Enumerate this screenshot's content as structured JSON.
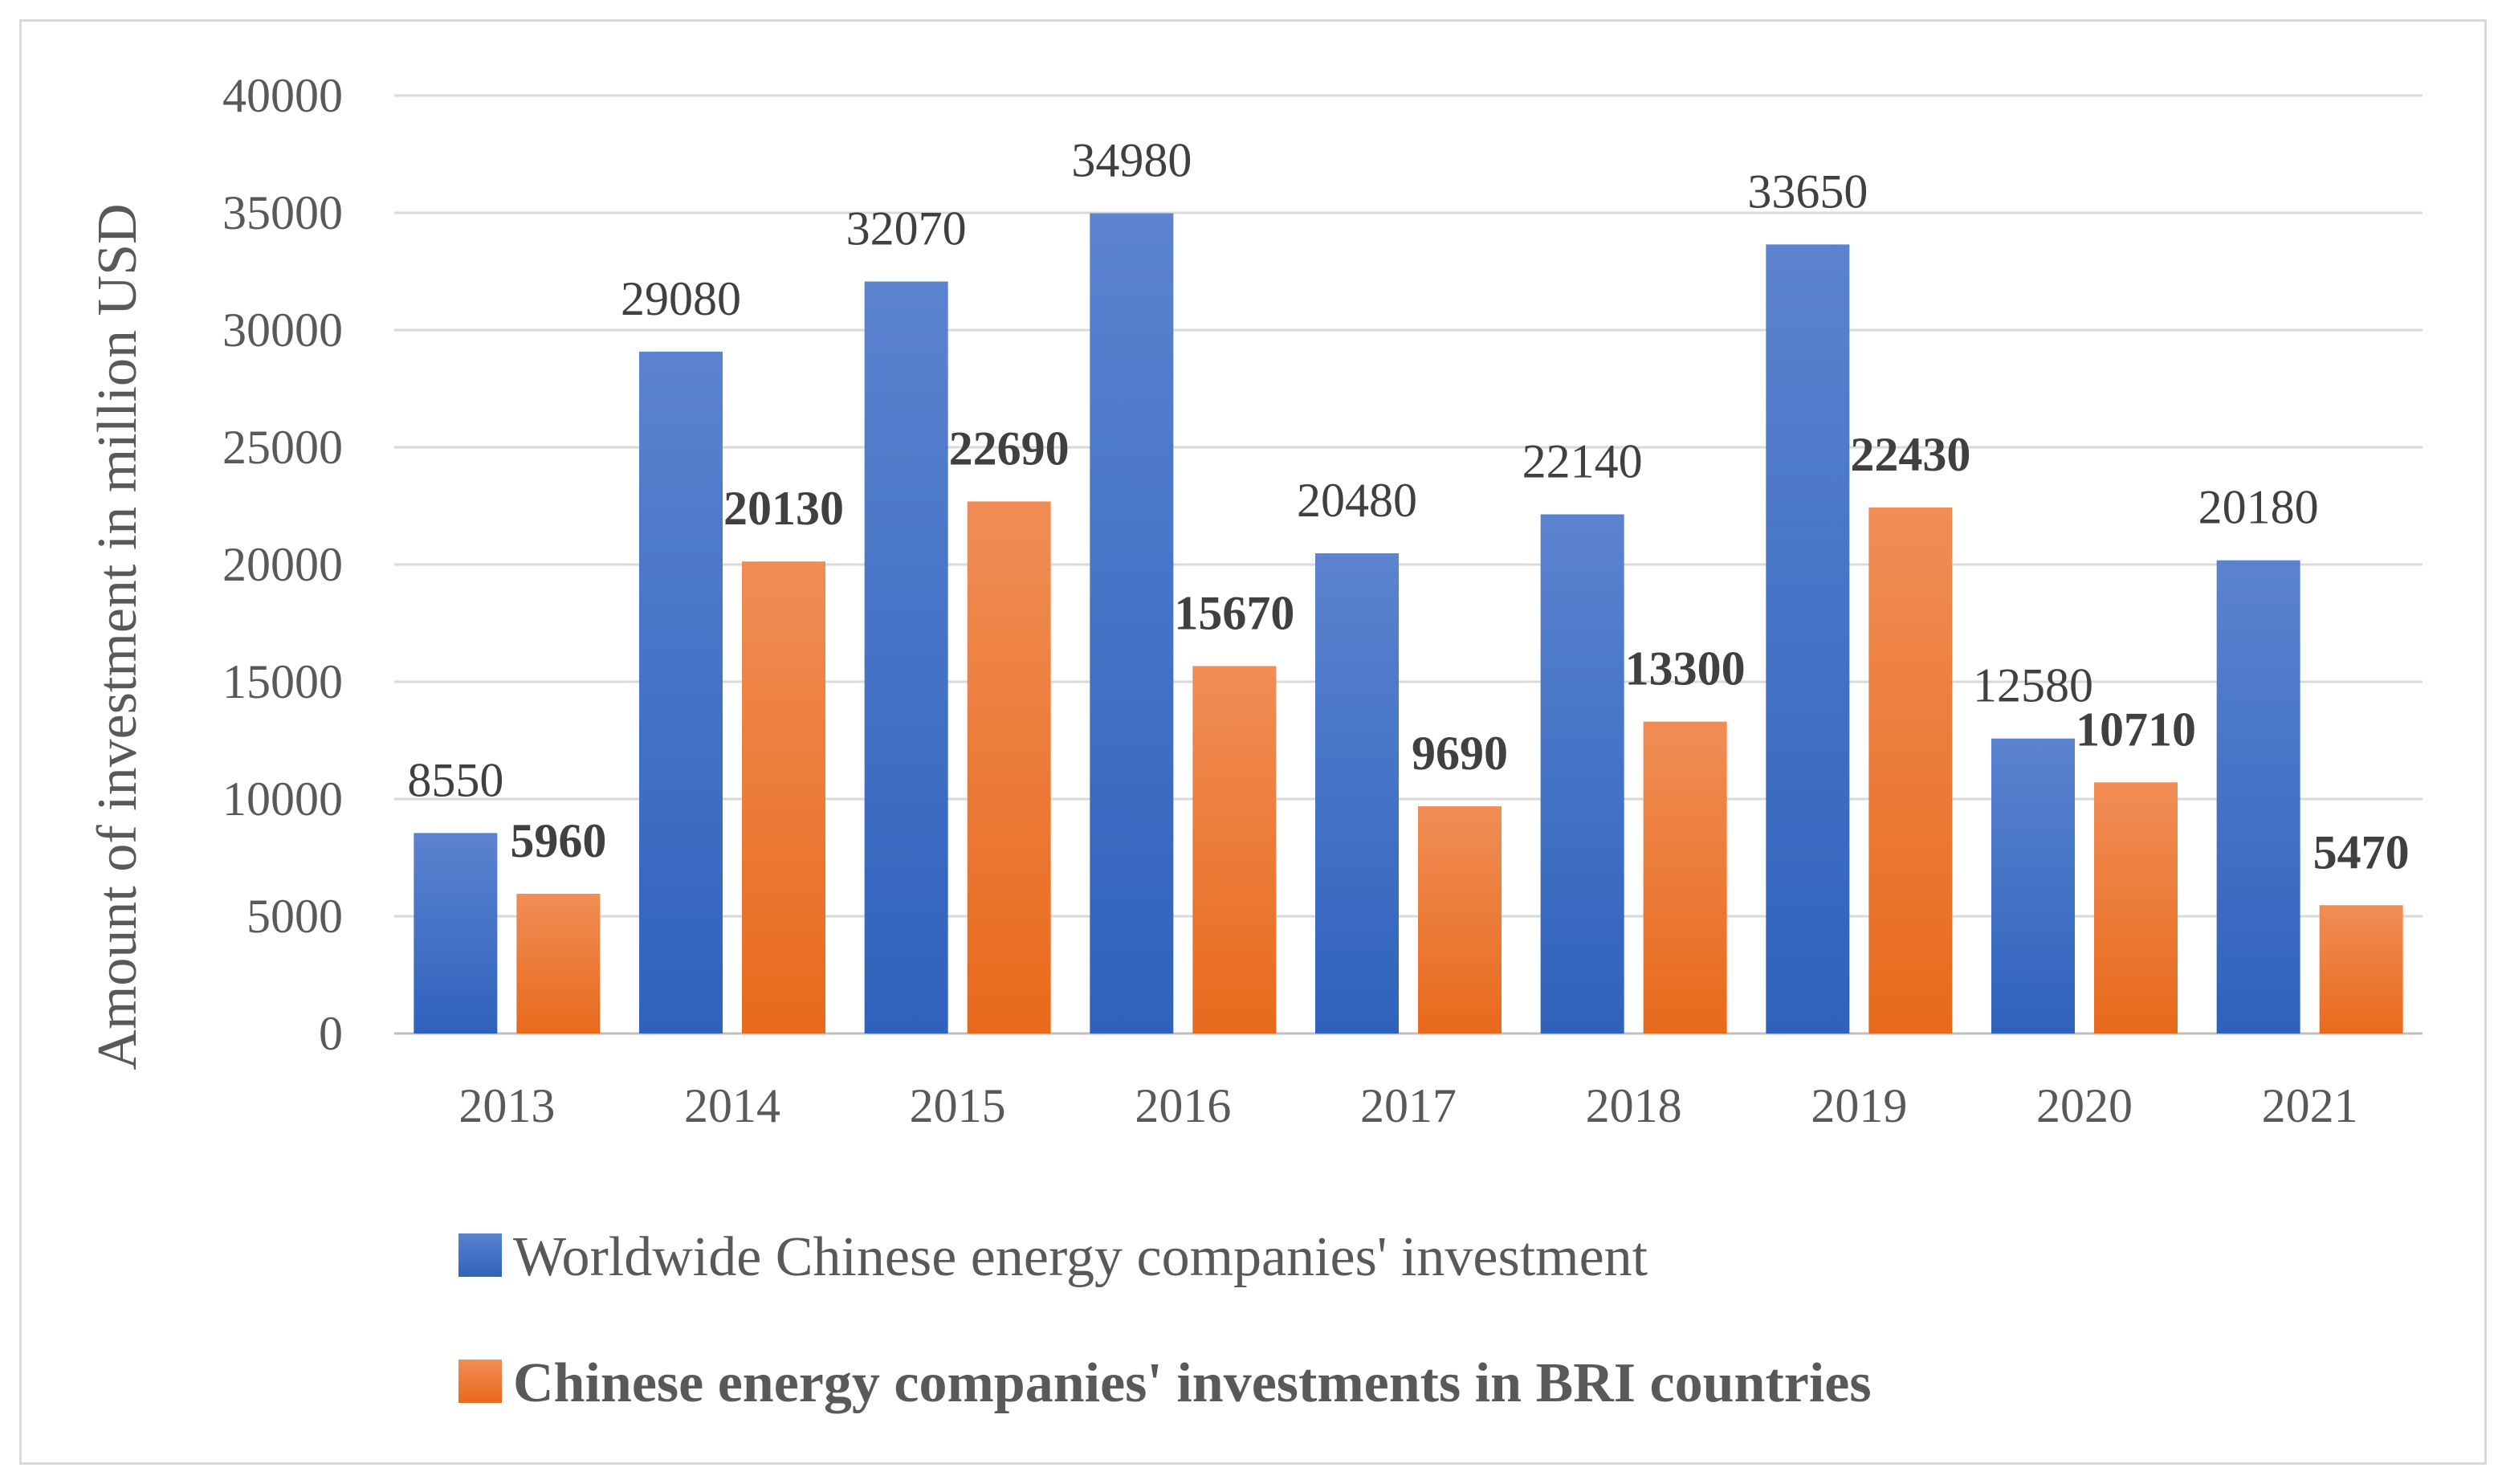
{
  "chart_data": {
    "type": "bar",
    "categories": [
      "2013",
      "2014",
      "2015",
      "2016",
      "2017",
      "2018",
      "2019",
      "2020",
      "2021"
    ],
    "series": [
      {
        "name": "Worldwide Chinese energy companies' investment",
        "values": [
          8550,
          29080,
          32070,
          34980,
          20480,
          22140,
          33650,
          12580,
          20180
        ],
        "color": "#4472c4",
        "label_weight": "normal"
      },
      {
        "name": "Chinese energy companies' investments in BRI countries",
        "values": [
          5960,
          20130,
          22690,
          15670,
          9690,
          13300,
          22430,
          10710,
          5470
        ],
        "color": "#ed7d31",
        "label_weight": "bold"
      }
    ],
    "title": "",
    "xlabel": "",
    "ylabel": "Amount of investment in million USD",
    "ylim": [
      0,
      40000
    ],
    "yticks": [
      "0",
      "5000",
      "10000",
      "15000",
      "20000",
      "25000",
      "30000",
      "35000",
      "40000"
    ],
    "grid": true,
    "legend_position": "bottom"
  }
}
